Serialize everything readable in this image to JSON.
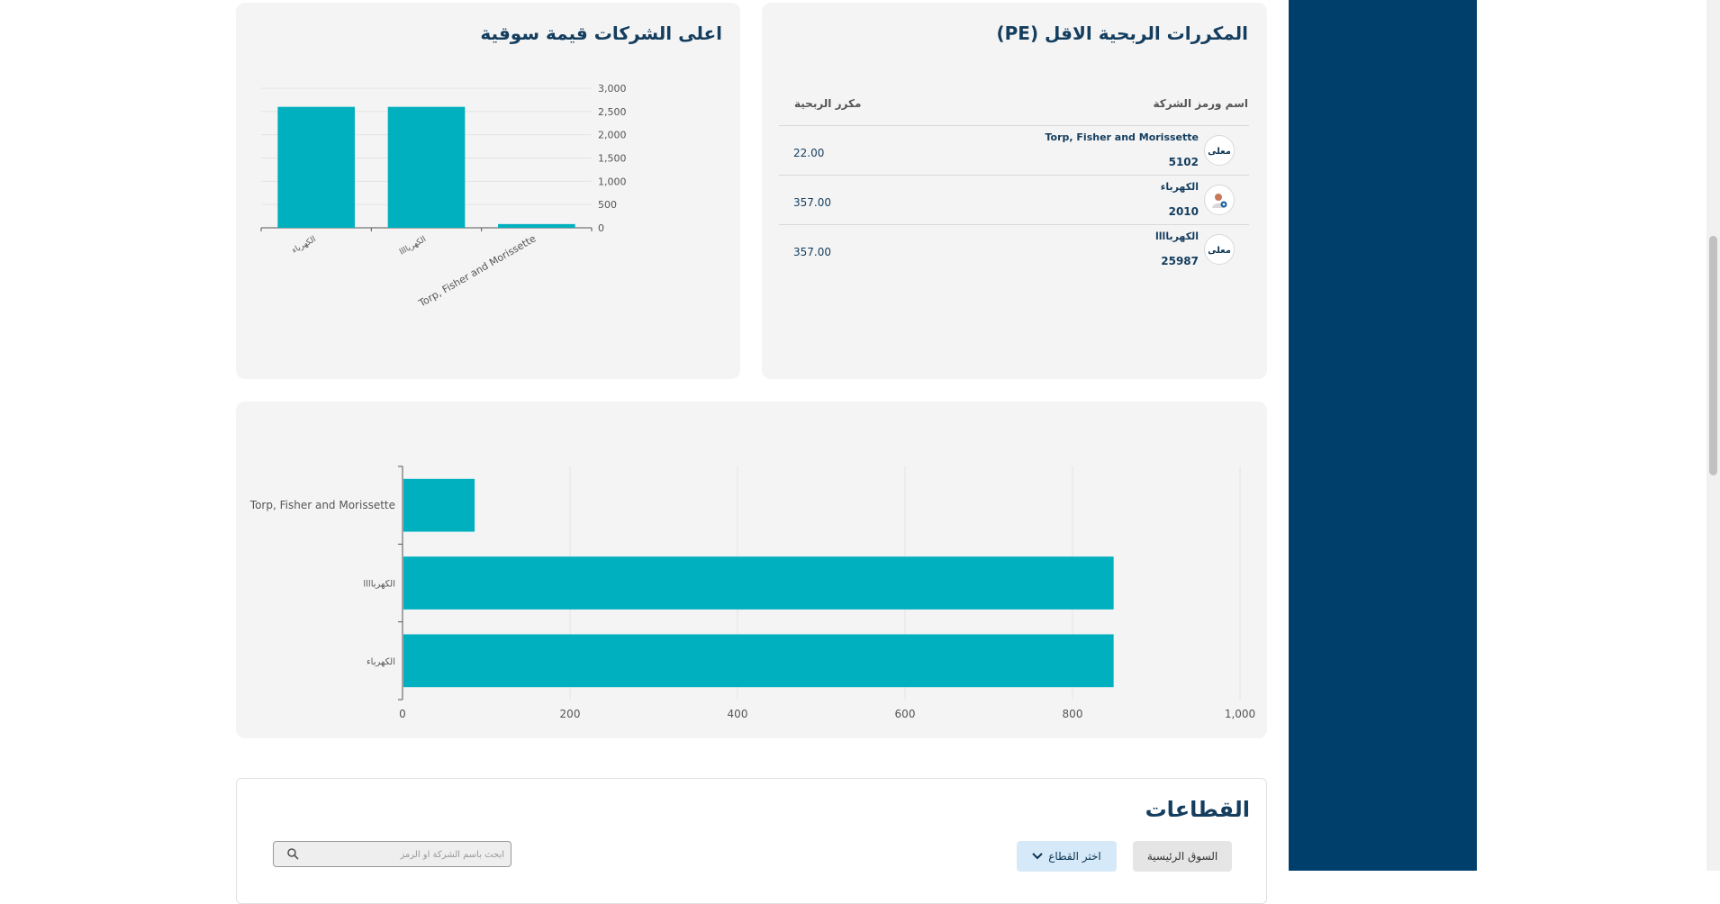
{
  "colors": {
    "accent": "#00b0bf",
    "navy": "#143d5e",
    "sidebar": "#003f6b",
    "card_bg": "#f4f4f4"
  },
  "pe_table": {
    "title": "المكررات الربحية الاقل (PE)",
    "col_company": "اسم ورمز الشركة",
    "col_pe": "مكرر الربحية",
    "rows": [
      {
        "name": "Torp, Fisher and Morissette",
        "code": "5102",
        "pe": "22.00",
        "logo_icon": "company-logo-icon"
      },
      {
        "name": "الكهرباء",
        "code": "2010",
        "pe": "357.00",
        "logo_icon": "avatar-icon"
      },
      {
        "name": "الكهرباااا",
        "code": "25987",
        "pe": "357.00",
        "logo_icon": "company-logo-icon"
      }
    ]
  },
  "market_cap": {
    "title": "اعلى الشركات قيمة سوقية"
  },
  "chart_data": [
    {
      "type": "bar",
      "orientation": "vertical",
      "title": "اعلى الشركات قيمة سوقية",
      "categories": [
        "الكهرباء",
        "الكهرباااا",
        "Torp, Fisher and Morissette"
      ],
      "values": [
        2600,
        2600,
        80
      ],
      "ylim": [
        0,
        3000
      ],
      "yticks": [
        0,
        500,
        1000,
        1500,
        2000,
        2500,
        3000
      ],
      "ytick_labels": [
        "0",
        "500",
        "1,000",
        "1,500",
        "2,000",
        "2,500",
        "3,000"
      ],
      "grid": true,
      "color": "#00b0bf"
    },
    {
      "type": "bar",
      "orientation": "horizontal",
      "title": "",
      "categories": [
        "Torp, Fisher and Morissette",
        "الكهرباااا",
        "الكهرباء"
      ],
      "values": [
        85,
        848,
        848
      ],
      "xlim": [
        0,
        1000
      ],
      "xticks": [
        0,
        200,
        400,
        600,
        800,
        1000
      ],
      "xtick_labels": [
        "0",
        "200",
        "400",
        "600",
        "800",
        "1,000"
      ],
      "grid": true,
      "color": "#00b0bf"
    }
  ],
  "sectors": {
    "title": "القطاعات",
    "main_market_label": "السوق الرئيسية",
    "select_sector_label": "اختر القطاع",
    "search_placeholder": "ابحث باسم الشركة او الرمز",
    "search_value": ""
  }
}
